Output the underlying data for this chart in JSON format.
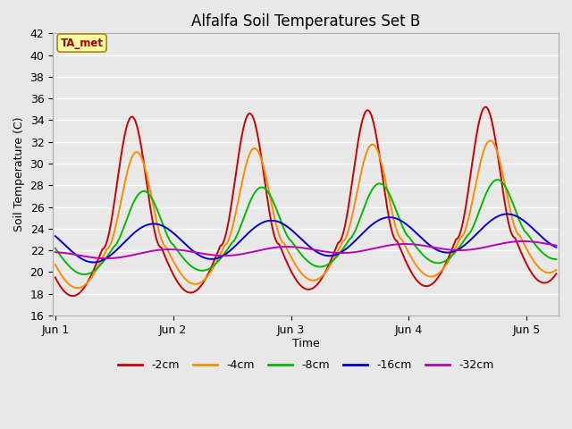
{
  "title": "Alfalfa Soil Temperatures Set B",
  "xlabel": "Time",
  "ylabel": "Soil Temperature (C)",
  "xlim": [
    -0.02,
    4.27
  ],
  "ylim": [
    16,
    42
  ],
  "yticks": [
    16,
    18,
    20,
    22,
    24,
    26,
    28,
    30,
    32,
    34,
    36,
    38,
    40,
    42
  ],
  "xtick_positions": [
    0,
    1,
    2,
    3,
    4
  ],
  "xtick_labels": [
    "Jun 1",
    "Jun 2",
    "Jun 3",
    "Jun 4",
    "Jun 5"
  ],
  "plot_bg_color": "#e8e8e8",
  "grid_color": "#ffffff",
  "colors": {
    "-2cm": "#cc0000",
    "-4cm": "#ff8c00",
    "-8cm": "#00bb00",
    "-16cm": "#0000cc",
    "-32cm": "#bb00bb"
  },
  "legend_labels": [
    "-2cm",
    "-4cm",
    "-8cm",
    "-16cm",
    "-32cm"
  ],
  "ta_met_box_color": "#ffffaa",
  "ta_met_text_color": "#aa0000",
  "num_points": 2000
}
